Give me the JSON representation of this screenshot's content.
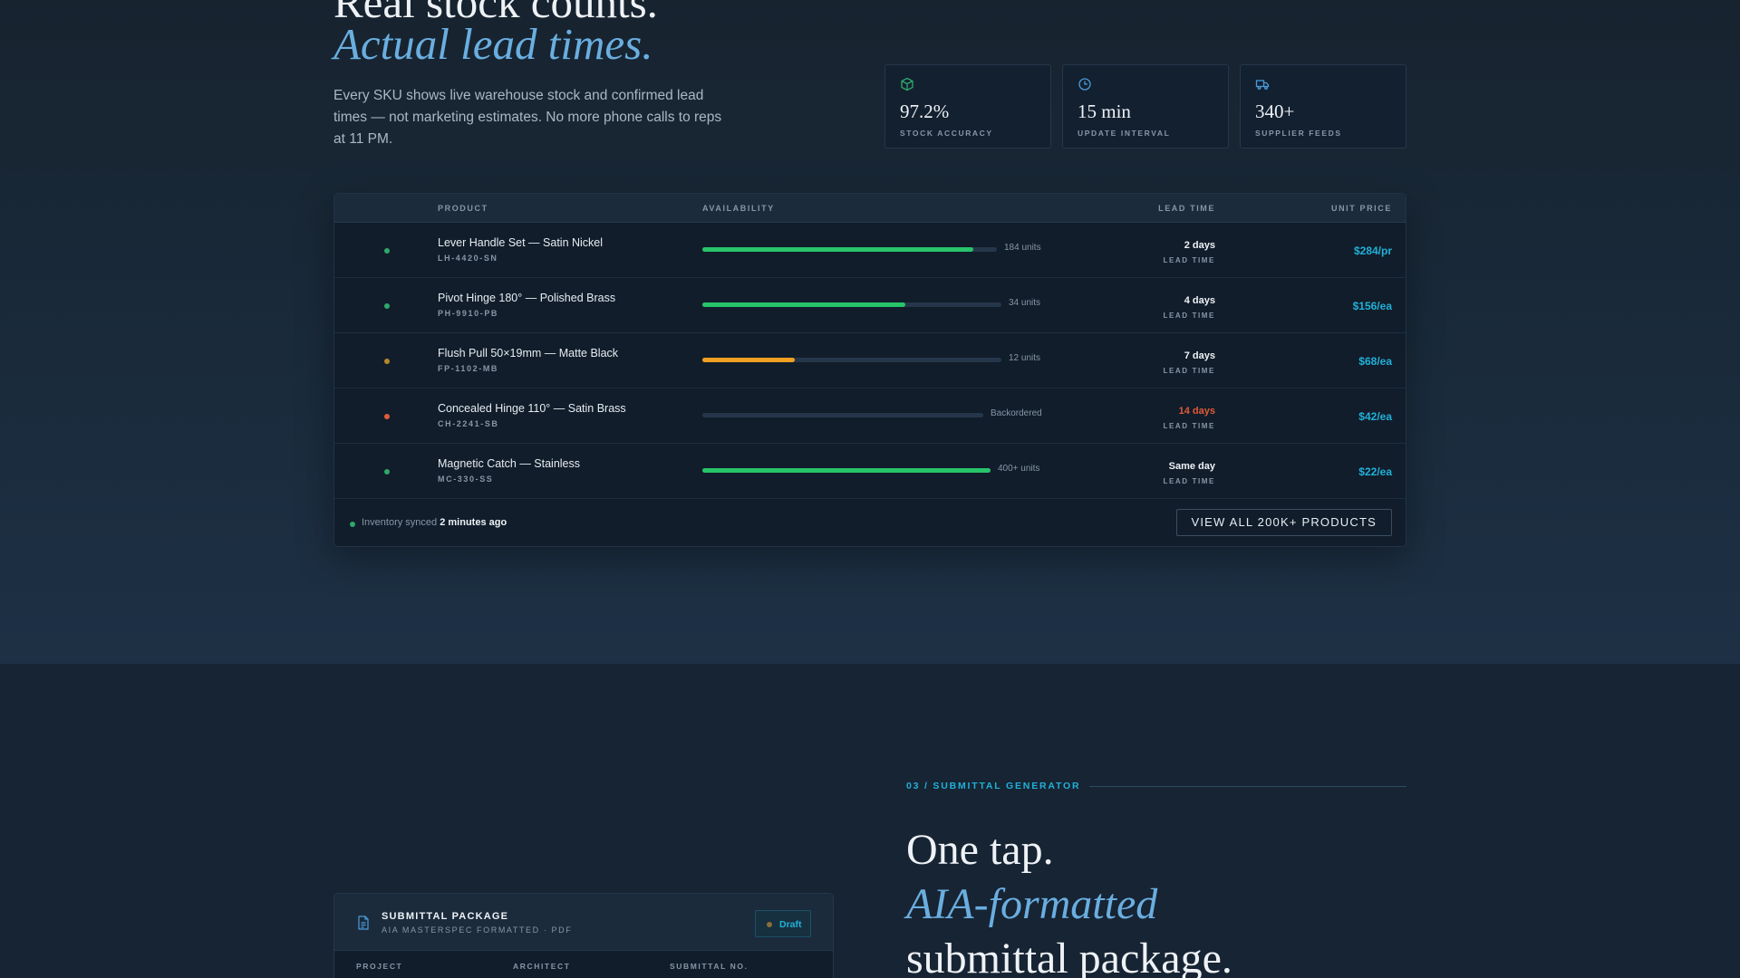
{
  "hero": {
    "title_line1": "Real stock counts.",
    "title_line2": "Actual lead times.",
    "description": "Every SKU shows live warehouse stock and confirmed lead times — not marketing estimates. No more phone calls to reps at 11 PM."
  },
  "stats": [
    {
      "icon": "box-icon",
      "value": "97.2%",
      "label": "STOCK ACCURACY"
    },
    {
      "icon": "clock-icon",
      "value": "15 min",
      "label": "UPDATE INTERVAL"
    },
    {
      "icon": "truck-icon",
      "value": "340+",
      "label": "SUPPLIER FEEDS"
    }
  ],
  "table": {
    "headers": {
      "product": "PRODUCT",
      "availability": "AVAILABILITY",
      "lead_time": "LEAD TIME",
      "unit_price": "UNIT PRICE"
    },
    "rows": [
      {
        "name": "Lever Handle Set — Satin Nickel",
        "sku": "LH-4420-SN",
        "status_color": "#2fa86a",
        "availability_fraction": 0.92,
        "bar_color": "#27c46a",
        "availability_label": "184 units",
        "lead": "2 days",
        "lead_color": "#eef2f6",
        "lead_label": "LEAD TIME",
        "price": "$284/pr"
      },
      {
        "name": "Pivot Hinge 180° — Polished Brass",
        "sku": "PH-9910-PB",
        "status_color": "#2fa86a",
        "availability_fraction": 0.68,
        "bar_color": "#27c46a",
        "availability_label": "34 units",
        "lead": "4 days",
        "lead_color": "#eef2f6",
        "lead_label": "LEAD TIME",
        "price": "$156/ea"
      },
      {
        "name": "Flush Pull 50×19mm — Matte Black",
        "sku": "FP-1102-MB",
        "status_color": "#b8862a",
        "availability_fraction": 0.31,
        "bar_color": "#f0a020",
        "availability_label": "12 units",
        "lead": "7 days",
        "lead_color": "#eef2f6",
        "lead_label": "LEAD TIME",
        "price": "$68/ea"
      },
      {
        "name": "Concealed Hinge 110° — Satin Brass",
        "sku": "CH-2241-SB",
        "status_color": "#e05a3a",
        "availability_fraction": 0.0,
        "bar_color": "#27c46a",
        "availability_label": "Backordered",
        "lead": "14 days",
        "lead_color": "#e05a3a",
        "lead_label": "LEAD TIME",
        "price": "$42/ea"
      },
      {
        "name": "Magnetic Catch — Stainless",
        "sku": "MC-330-SS",
        "status_color": "#2fa86a",
        "availability_fraction": 1.0,
        "bar_color": "#27c46a",
        "availability_label": "400+ units",
        "lead": "Same day",
        "lead_color": "#eef2f6",
        "lead_label": "LEAD TIME",
        "price": "$22/ea"
      }
    ],
    "footer": {
      "sync_prefix": "Inventory synced ",
      "sync_time": "2 minutes ago",
      "view_all": "VIEW ALL 200K+ PRODUCTS"
    }
  },
  "submittal_section": {
    "eyebrow": "03 / SUBMITTAL GENERATOR",
    "title_line1": "One tap.",
    "title_line2": "AIA-formatted",
    "title_line3": "submittal package."
  },
  "submittal_card": {
    "title": "SUBMITTAL PACKAGE",
    "meta": "AIA MASTERSPEC FORMATTED · PDF",
    "badge": "Draft",
    "columns": [
      "PROJECT",
      "ARCHITECT",
      "SUBMITTAL NO."
    ]
  },
  "colors": {
    "accent": "#22b0d8",
    "serif_italic": "#6aaee0",
    "in_stock": "#27c46a",
    "low_stock": "#f0a020",
    "backordered": "#e05a3a"
  }
}
